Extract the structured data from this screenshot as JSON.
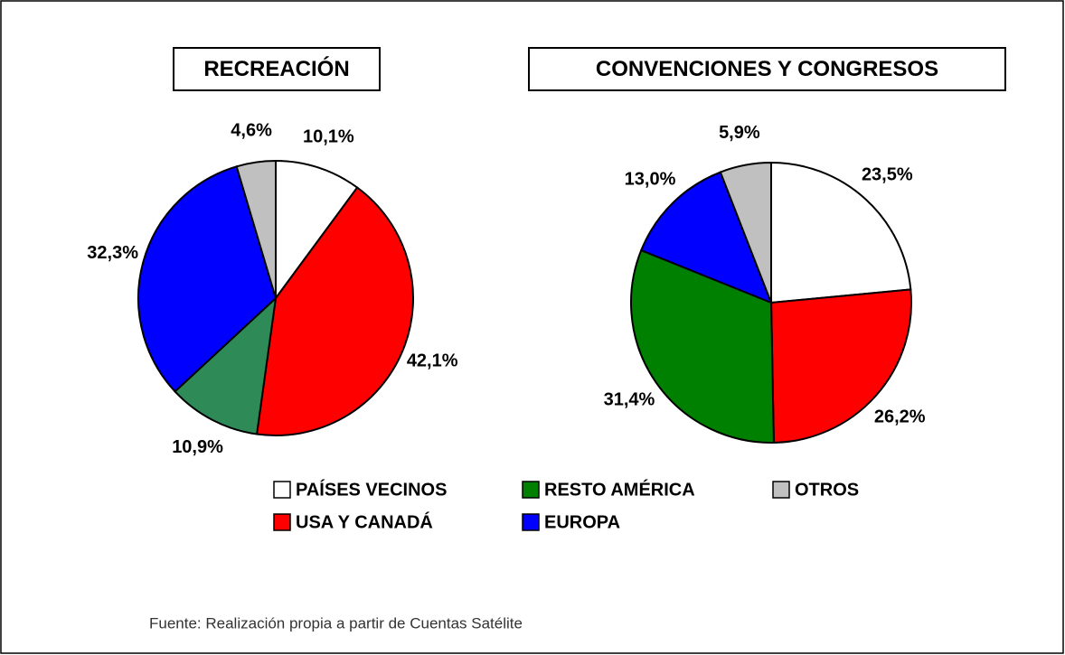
{
  "chart_data": [
    {
      "type": "pie",
      "title": "RECREACIÓN",
      "categories": [
        "PAÍSES VECINOS",
        "USA Y CANADÁ",
        "RESTO AMÉRICA",
        "EUROPA",
        "OTROS"
      ],
      "values": [
        10.1,
        42.1,
        10.9,
        32.3,
        4.6
      ],
      "value_labels": [
        "10,1%",
        "42,1%",
        "10,9%",
        "32,3%",
        "4,6%"
      ],
      "colors": [
        "#ffffff",
        "#ff0000",
        "#2e8b57",
        "#0000ff",
        "#c0c0c0"
      ]
    },
    {
      "type": "pie",
      "title": "CONVENCIONES Y CONGRESOS",
      "categories": [
        "PAÍSES VECINOS",
        "USA Y CANADÁ",
        "RESTO AMÉRICA",
        "EUROPA",
        "OTROS"
      ],
      "values": [
        23.5,
        26.2,
        31.4,
        13.0,
        5.9
      ],
      "value_labels": [
        "23,5%",
        "26,2%",
        "31,4%",
        "13,0%",
        "5,9%"
      ],
      "colors": [
        "#ffffff",
        "#ff0000",
        "#008000",
        "#0000ff",
        "#c0c0c0"
      ]
    }
  ],
  "source": "Fuente: Realización propia a partir de Cuentas Satélite"
}
